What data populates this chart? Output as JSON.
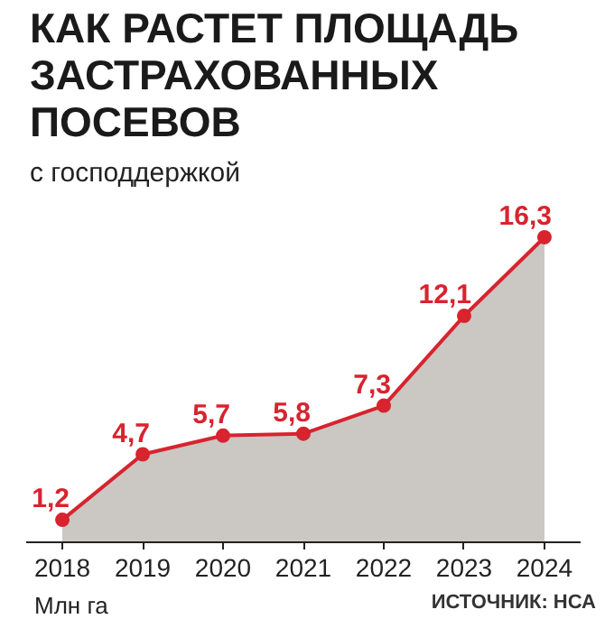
{
  "chart_data": {
    "type": "area",
    "title": "КАК РАСТЕТ ПЛОЩАДЬ ЗАСТРАХОВАННЫХ ПОСЕВОВ",
    "subtitle": "с господдержкой",
    "xlabel": "Млн га",
    "annotations": [
      "ИСТОЧНИК: НСА"
    ],
    "categories": [
      "2018",
      "2019",
      "2020",
      "2021",
      "2022",
      "2023",
      "2024"
    ],
    "series": [
      {
        "color": "#d7242f",
        "values": [
          1.2,
          4.7,
          5.7,
          5.8,
          7.3,
          12.1,
          16.3
        ],
        "value_labels": [
          "1,2",
          "4,7",
          "5,7",
          "5,8",
          "7,3",
          "12,1",
          "16,3"
        ]
      }
    ],
    "marker": "circle",
    "grid": false
  }
}
